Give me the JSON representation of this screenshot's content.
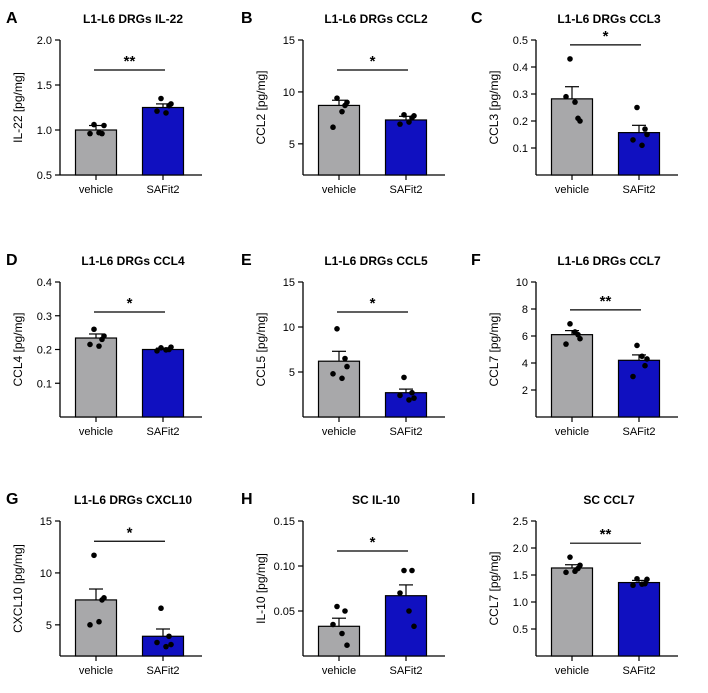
{
  "chart_data": [
    {
      "type": "bar",
      "panel_letter": "A",
      "title": "L1-L6 DRGs IL-22",
      "ylabel": "IL-22 [pg/mg]",
      "ylim": [
        0.5,
        2.0
      ],
      "yticks": [
        "0.5",
        "1.0",
        "1.5",
        "2.0"
      ],
      "categories": [
        "vehicle",
        "SAFit2"
      ],
      "values": [
        1.0,
        1.25
      ],
      "errors": [
        0.05,
        0.04
      ],
      "points": [
        [
          1.06,
          0.96,
          0.96,
          0.97,
          1.05
        ],
        [
          1.35,
          1.27,
          1.21,
          1.19,
          1.29
        ]
      ],
      "significance": "**"
    },
    {
      "type": "bar",
      "panel_letter": "B",
      "title": "L1-L6 DRGs CCL2",
      "ylabel": "CCL2 [pg/mg]",
      "ylim": [
        2.0,
        15.0
      ],
      "yticks": [
        "5",
        "10",
        "15"
      ],
      "categories": [
        "vehicle",
        "SAFit2"
      ],
      "values": [
        8.7,
        7.3
      ],
      "errors": [
        0.5,
        0.35
      ],
      "points": [
        [
          9.4,
          8.7,
          6.6,
          8.1,
          9.0
        ],
        [
          7.8,
          7.5,
          6.9,
          7.1,
          7.7
        ]
      ],
      "significance": "*"
    },
    {
      "type": "bar",
      "panel_letter": "C",
      "title": "L1-L6 DRGs CCL3",
      "ylabel": "CCL3 [pg/mg]",
      "ylim": [
        0.0,
        0.5
      ],
      "yticks": [
        "0.1",
        "0.2",
        "0.3",
        "0.4",
        "0.5"
      ],
      "categories": [
        "vehicle",
        "SAFit2"
      ],
      "values": [
        0.282,
        0.157
      ],
      "errors": [
        0.045,
        0.027
      ],
      "points": [
        [
          0.43,
          0.21,
          0.29,
          0.27,
          0.2
        ],
        [
          0.25,
          0.17,
          0.13,
          0.11,
          0.15
        ]
      ],
      "significance": "*"
    },
    {
      "type": "bar",
      "panel_letter": "D",
      "title": "L1-L6 DRGs CCL4",
      "ylabel": "CCL4 [pg/mg]",
      "ylim": [
        0.0,
        0.4
      ],
      "yticks": [
        "0.1",
        "0.2",
        "0.3",
        "0.4"
      ],
      "categories": [
        "vehicle",
        "SAFit2"
      ],
      "values": [
        0.234,
        0.2
      ],
      "errors": [
        0.012,
        0.004
      ],
      "points": [
        [
          0.26,
          0.23,
          0.215,
          0.21,
          0.24
        ],
        [
          0.205,
          0.2,
          0.196,
          0.199,
          0.207
        ]
      ],
      "significance": "*"
    },
    {
      "type": "bar",
      "panel_letter": "E",
      "title": "L1-L6 DRGs CCL5",
      "ylabel": "CCL5 [pg/mg]",
      "ylim": [
        0.0,
        15.0
      ],
      "yticks": [
        "5",
        "10",
        "15"
      ],
      "categories": [
        "vehicle",
        "SAFit2"
      ],
      "values": [
        6.2,
        2.7
      ],
      "errors": [
        1.1,
        0.4
      ],
      "points": [
        [
          9.8,
          6.5,
          4.8,
          4.3,
          5.6
        ],
        [
          4.4,
          2.7,
          2.4,
          1.9,
          2.1
        ]
      ],
      "significance": "*"
    },
    {
      "type": "bar",
      "panel_letter": "F",
      "title": "L1-L6 DRGs CCL7",
      "ylabel": "CCL7 [pg/mg]",
      "ylim": [
        0.0,
        10.0
      ],
      "yticks": [
        "2",
        "4",
        "6",
        "8",
        "10"
      ],
      "categories": [
        "vehicle",
        "SAFit2"
      ],
      "values": [
        6.1,
        4.2
      ],
      "errors": [
        0.3,
        0.4
      ],
      "points": [
        [
          6.9,
          6.1,
          5.4,
          6.3,
          5.8
        ],
        [
          5.3,
          3.8,
          3.0,
          4.5,
          4.3
        ]
      ],
      "significance": "**"
    },
    {
      "type": "bar",
      "panel_letter": "G",
      "title": "L1-L6 DRGs CXCL10",
      "ylabel": "CXCL10 [pg/mg]",
      "ylim": [
        2.0,
        15.0
      ],
      "yticks": [
        "5",
        "10",
        "15"
      ],
      "categories": [
        "vehicle",
        "SAFit2"
      ],
      "values": [
        7.4,
        3.9
      ],
      "errors": [
        1.05,
        0.7
      ],
      "points": [
        [
          11.7,
          7.4,
          5.0,
          5.3,
          7.6
        ],
        [
          6.6,
          3.9,
          3.3,
          2.9,
          3.1
        ]
      ],
      "significance": "*"
    },
    {
      "type": "bar",
      "panel_letter": "H",
      "title": "SC IL-10",
      "ylabel": "IL-10 [pg/mg]",
      "ylim": [
        0.0,
        0.15
      ],
      "yticks": [
        "0.05",
        "0.10",
        "0.15"
      ],
      "categories": [
        "vehicle",
        "SAFit2"
      ],
      "values": [
        0.033,
        0.067
      ],
      "errors": [
        0.009,
        0.012
      ],
      "points": [
        [
          0.055,
          0.05,
          0.035,
          0.025,
          0.012
        ],
        [
          0.095,
          0.095,
          0.07,
          0.05,
          0.033
        ]
      ],
      "significance": "*"
    },
    {
      "type": "bar",
      "panel_letter": "I",
      "title": "SC CCL7",
      "ylabel": "CCL7 [pg/mg]",
      "ylim": [
        0.0,
        2.5
      ],
      "yticks": [
        "0.5",
        "1.0",
        "1.5",
        "2.0",
        "2.5"
      ],
      "categories": [
        "vehicle",
        "SAFit2"
      ],
      "values": [
        1.63,
        1.36
      ],
      "errors": [
        0.06,
        0.04
      ],
      "points": [
        [
          1.83,
          1.62,
          1.55,
          1.57,
          1.68
        ],
        [
          1.43,
          1.34,
          1.31,
          1.33,
          1.42
        ]
      ],
      "significance": "**"
    }
  ],
  "colors": {
    "vehicle_bar": "#a8a8aa",
    "safit2_bar": "#1010c0",
    "ink": "#000000"
  }
}
